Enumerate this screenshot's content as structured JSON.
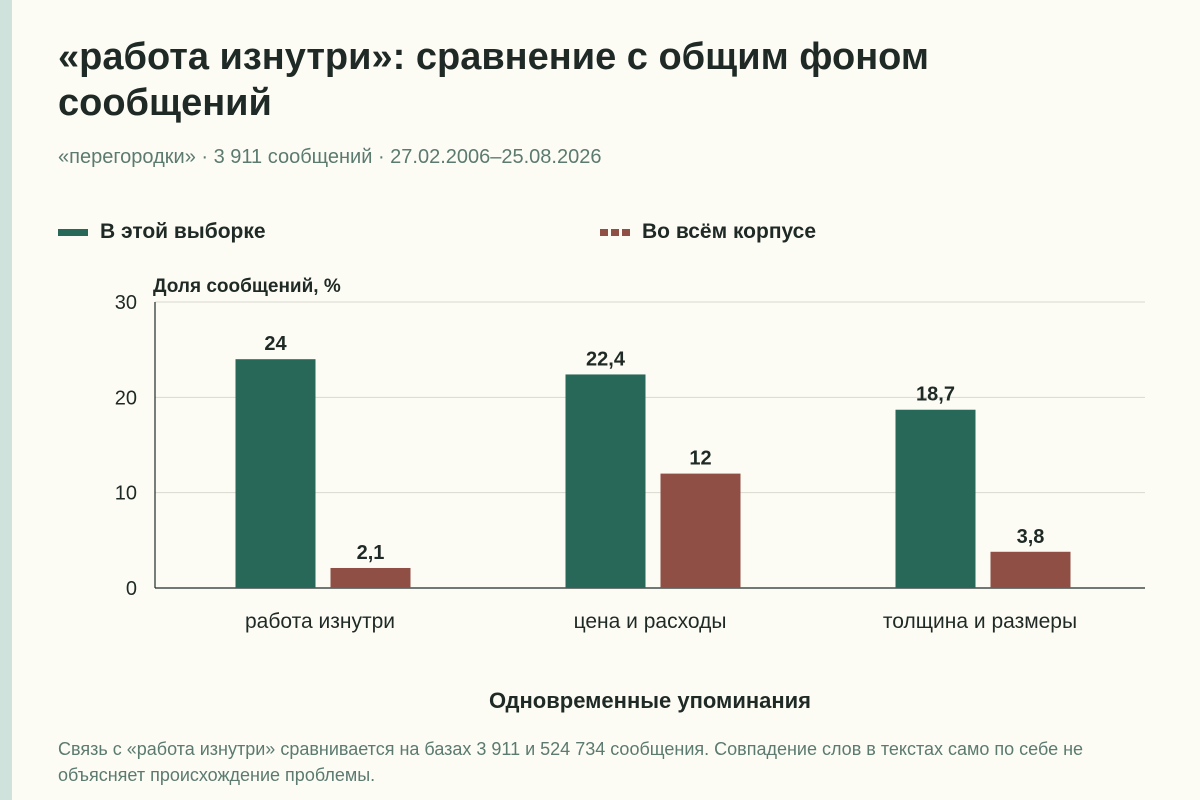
{
  "title": "«работа изнутри»: сравнение с общим фоном сообщений",
  "subtitle": "«перегородки» · 3 911 сообщений · 27.02.2006–25.08.2026",
  "footnote": "Связь с «работа изнутри» сравнивается на базах 3 911 и 524 734 сообщения. Совпадение слов в текстах само по себе не объясняет происхождение проблемы.",
  "colors": {
    "series1": "#276858",
    "series2": "#8f4f45",
    "grid": "#d9d9d0",
    "axis": "#1f2a26"
  },
  "chart_data": {
    "type": "bar",
    "title": "«работа изнутри»: сравнение с общим фоном сообщений",
    "ylabel": "Доля сообщений, %",
    "xlabel": "Одновременные упоминания",
    "ylim": [
      0,
      30
    ],
    "yticks": [
      0,
      10,
      20,
      30
    ],
    "grid": true,
    "legend_position": "top",
    "categories": [
      "работа изнутри",
      "цена и расходы",
      "толщина и размеры"
    ],
    "series": [
      {
        "name": "В этой выборке",
        "values": [
          24,
          22.4,
          18.7
        ],
        "labels": [
          "24",
          "22,4",
          "18,7"
        ]
      },
      {
        "name": "Во всём корпусе",
        "values": [
          2.1,
          12,
          3.8
        ],
        "labels": [
          "2,1",
          "12",
          "3,8"
        ]
      }
    ]
  }
}
